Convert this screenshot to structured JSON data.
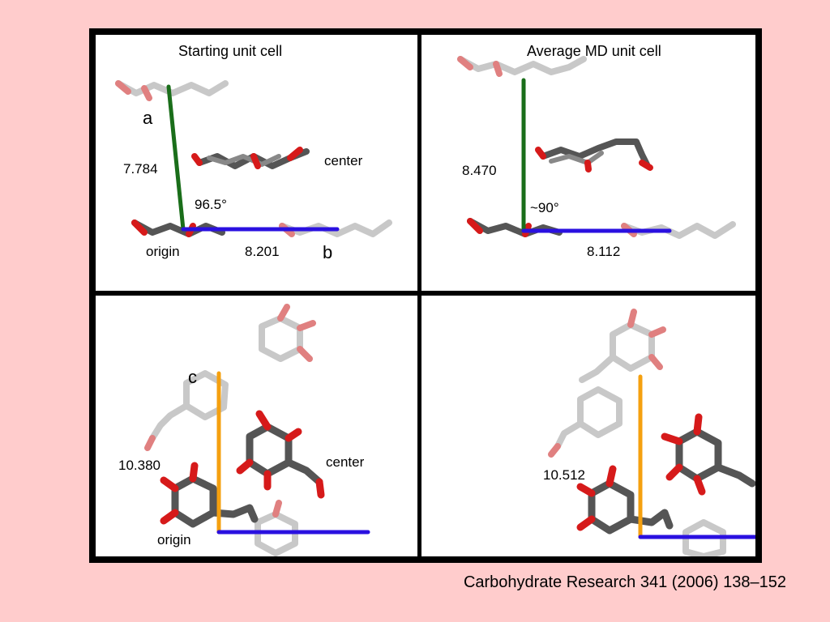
{
  "panels": {
    "top_left": {
      "title": "Starting unit cell",
      "axis_a": "a",
      "axis_b": "b",
      "length_a": "7.784",
      "length_b": "8.201",
      "angle": "96.5°",
      "center": "center",
      "origin": "origin"
    },
    "top_right": {
      "title": "Average MD unit cell",
      "length_a": "8.470",
      "length_b": "8.112",
      "angle": "~90°"
    },
    "bottom_left": {
      "axis_c": "c",
      "length_c": "10.380",
      "center": "center",
      "origin": "origin"
    },
    "bottom_right": {
      "length_c": "10.512"
    }
  },
  "citation": "Carbohydrate Research 341 (2006) 138–152",
  "colors": {
    "background": "#ffcccc",
    "axis_a": "#1a6e1a",
    "axis_b": "#2a10e0",
    "axis_c": "#f5a00f",
    "carbon_dark": "#555555",
    "carbon_light": "#c8c8c8",
    "oxygen": "#d61a1a"
  }
}
